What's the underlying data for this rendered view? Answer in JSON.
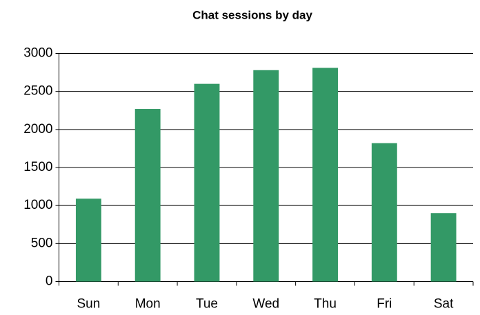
{
  "chart_data": {
    "type": "bar",
    "title": "Chat sessions by day",
    "categories": [
      "Sun",
      "Mon",
      "Tue",
      "Wed",
      "Thu",
      "Fri",
      "Sat"
    ],
    "values": [
      1090,
      2270,
      2600,
      2780,
      2810,
      1820,
      900
    ],
    "color": "#339966",
    "ylim": [
      0,
      3000
    ],
    "yticks": [
      0,
      500,
      1000,
      1500,
      2000,
      2500,
      3000
    ],
    "grid": true
  }
}
